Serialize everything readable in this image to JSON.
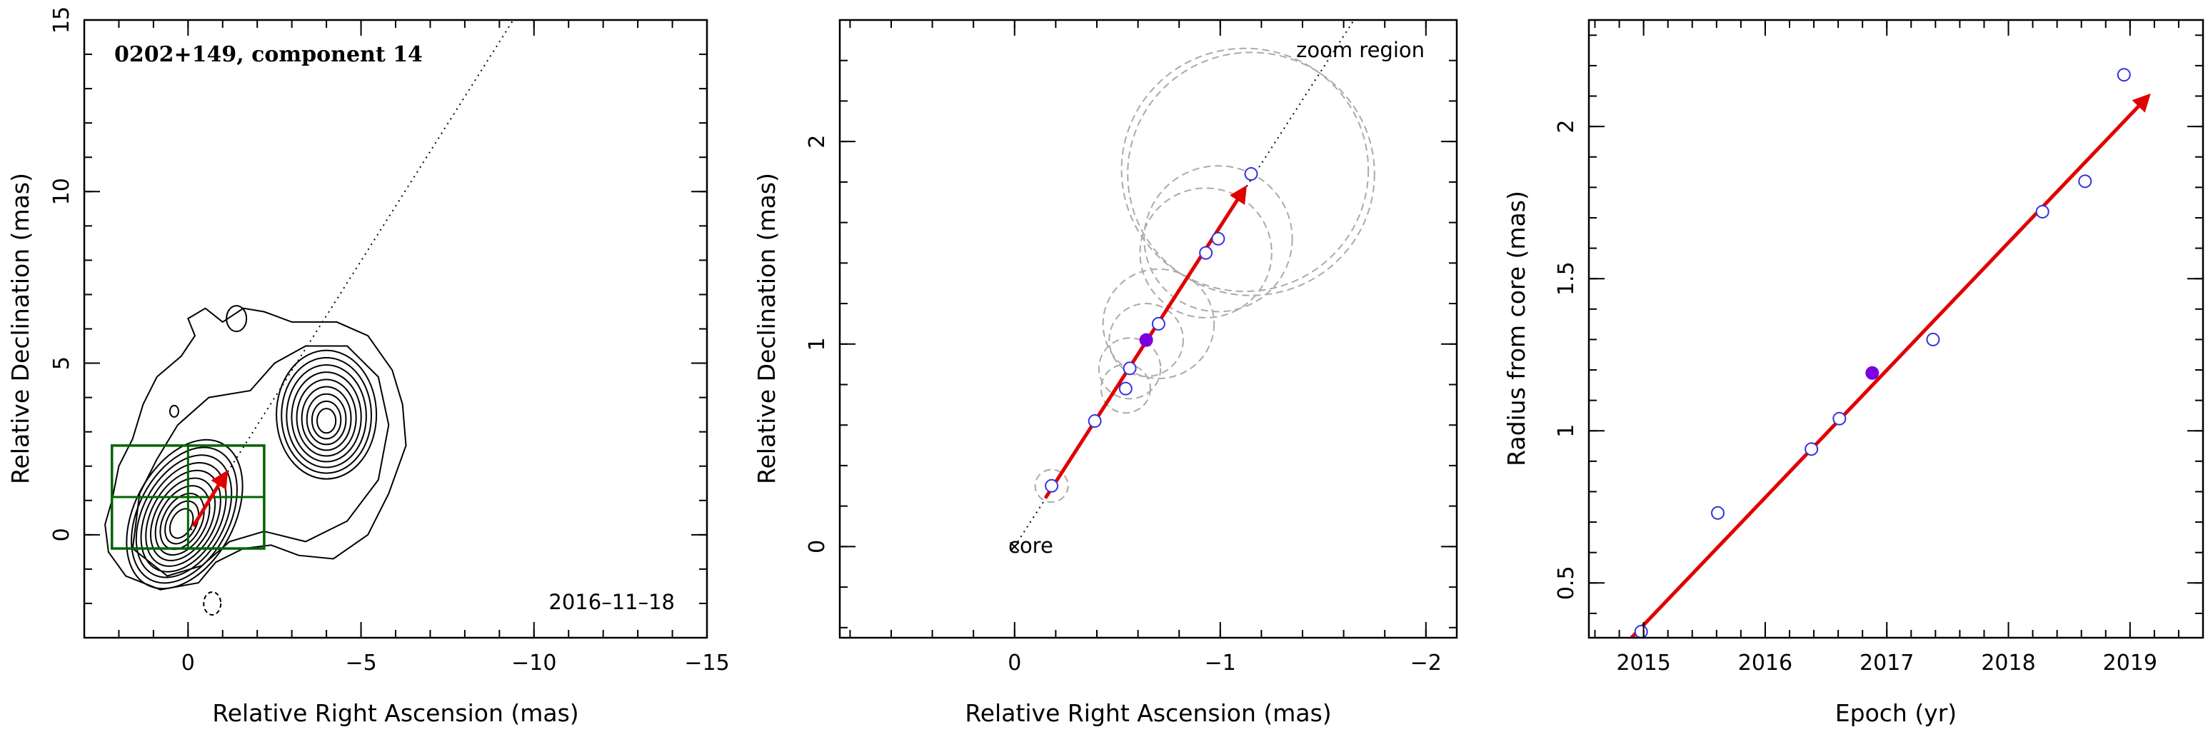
{
  "chart_data": [
    {
      "type": "contour",
      "title": "0202+149, component 14",
      "xlabel": "Relative Right Ascension (mas)",
      "ylabel": "Relative Declination (mas)",
      "xlim": [
        3,
        -15
      ],
      "ylim": [
        -3,
        15
      ],
      "xticks": [
        0,
        -5,
        -10,
        -15
      ],
      "xtick_labels": [
        "0",
        "−5",
        "−10",
        "−15"
      ],
      "yticks": [
        0,
        5,
        10,
        15
      ],
      "ytick_labels": [
        "0",
        "5",
        "10",
        "15"
      ],
      "date_label": "2016–11–18",
      "core_contours": {
        "center": [
          0.2,
          0.3
        ],
        "levels": 10
      },
      "jet_contours": {
        "center": [
          -4.0,
          3.3
        ],
        "levels": 9
      },
      "direction_line": {
        "from": [
          0,
          0
        ],
        "to": [
          -9.4,
          15
        ]
      },
      "zoom_box": {
        "x": [
          2.2,
          -2.2
        ],
        "y": [
          -0.4,
          2.6
        ]
      },
      "motion_vector": {
        "from": [
          -0.15,
          0.25
        ],
        "to": [
          -1.1,
          1.8
        ]
      },
      "colors": {
        "box": "#006400",
        "vector": "#e00000"
      }
    },
    {
      "type": "scatter",
      "xlabel": "Relative Right Ascension (mas)",
      "ylabel": "Relative Declination (mas)",
      "xlim": [
        0.85,
        -2.15
      ],
      "ylim": [
        -0.45,
        2.6
      ],
      "xticks": [
        0,
        -1,
        -2
      ],
      "xtick_labels": [
        "0",
        "−1",
        "−2"
      ],
      "yticks": [
        0,
        1,
        2
      ],
      "ytick_labels": [
        "0",
        "1",
        "2"
      ],
      "core_label": "core",
      "zoom_label": "zoom region",
      "points": [
        {
          "x": -0.18,
          "y": 0.3
        },
        {
          "x": -0.39,
          "y": 0.62
        },
        {
          "x": -0.54,
          "y": 0.78
        },
        {
          "x": -0.56,
          "y": 0.88
        },
        {
          "x": -0.64,
          "y": 1.02,
          "filled": true
        },
        {
          "x": -0.7,
          "y": 1.1
        },
        {
          "x": -0.93,
          "y": 1.45
        },
        {
          "x": -0.99,
          "y": 1.52
        },
        {
          "x": -1.15,
          "y": 1.84
        }
      ],
      "error_circles": [
        {
          "x": -0.18,
          "y": 0.3,
          "r": 0.08
        },
        {
          "x": -0.54,
          "y": 0.78,
          "r": 0.12
        },
        {
          "x": -0.56,
          "y": 0.88,
          "r": 0.15
        },
        {
          "x": -0.64,
          "y": 1.02,
          "r": 0.18
        },
        {
          "x": -0.7,
          "y": 1.1,
          "r": 0.27
        },
        {
          "x": -0.93,
          "y": 1.45,
          "r": 0.32
        },
        {
          "x": -0.99,
          "y": 1.52,
          "r": 0.36
        },
        {
          "x": -1.15,
          "y": 1.84,
          "r": 0.6
        }
      ],
      "direction_line": {
        "from": [
          0,
          0
        ],
        "to": [
          -1.65,
          2.6
        ]
      },
      "motion_vector": {
        "from": [
          -0.15,
          0.24
        ],
        "to": [
          -1.12,
          1.77
        ]
      },
      "colors": {
        "point": "#3333dd",
        "filled_point": "#7a00e0",
        "vector": "#e00000",
        "circle": "#aaaaaa"
      }
    },
    {
      "type": "scatter",
      "xlabel": "Epoch (yr)",
      "ylabel": "Radius from core (mas)",
      "xlim": [
        2014.55,
        2019.6
      ],
      "ylim": [
        0.32,
        2.35
      ],
      "xticks": [
        2015,
        2016,
        2017,
        2018,
        2019
      ],
      "xtick_labels": [
        "2015",
        "2016",
        "2017",
        "2018",
        "2019"
      ],
      "yticks": [
        0.5,
        1,
        1.5,
        2
      ],
      "ytick_labels": [
        "0.5",
        "1",
        "1.5",
        "2"
      ],
      "points": [
        {
          "x": 2014.98,
          "y": 0.34
        },
        {
          "x": 2015.61,
          "y": 0.73
        },
        {
          "x": 2016.38,
          "y": 0.94
        },
        {
          "x": 2016.61,
          "y": 1.04
        },
        {
          "x": 2016.88,
          "y": 1.19,
          "filled": true
        },
        {
          "x": 2017.38,
          "y": 1.3
        },
        {
          "x": 2018.28,
          "y": 1.72
        },
        {
          "x": 2018.63,
          "y": 1.82
        },
        {
          "x": 2018.95,
          "y": 2.17
        }
      ],
      "fit_vector": {
        "from": [
          2014.9,
          0.32
        ],
        "to": [
          2019.15,
          2.1
        ]
      },
      "colors": {
        "point": "#3333dd",
        "filled_point": "#7a00e0",
        "vector": "#e00000"
      }
    }
  ]
}
